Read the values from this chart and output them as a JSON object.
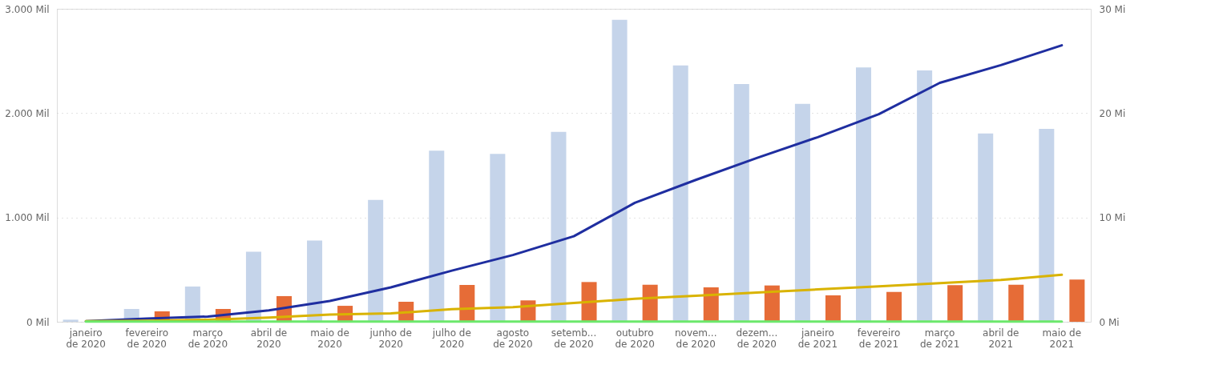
{
  "chart_data": {
    "type": "bar",
    "categories": [
      "janeiro\nde 2020",
      "fevereiro\nde 2020",
      "março\nde 2020",
      "abril de\n2020",
      "maio de\n2020",
      "junho de\n2020",
      "julho de\n2020",
      "agosto\nde 2020",
      "setemb...\nde 2020",
      "outubro\nde 2020",
      "novem...\nde 2020",
      "dezem...\nde 2020",
      "janeiro\nde 2021",
      "fevereiro\nde 2021",
      "março\nde 2021",
      "abril de\n2021",
      "maio de\n2021"
    ],
    "series": [
      {
        "color": "#c5d4ea",
        "values": [
          20,
          123,
          338,
          671,
          779,
          1169,
          1640,
          1609,
          1821,
          2895,
          2458,
          2279,
          2089,
          2438,
          2409,
          1805,
          1849
        ]
      },
      {
        "color": "#e66c37",
        "values": [
          null,
          100,
          123,
          246,
          153,
          192,
          353,
          205,
          381,
          355,
          330,
          348,
          253,
          286,
          351,
          355,
          404
        ]
      },
      {
        "type": "line",
        "axis": "y2",
        "color": "#1f2ea0",
        "values": [
          0.05,
          0.3,
          0.5,
          1.1,
          2.0,
          3.3,
          4.9,
          6.4,
          8.2,
          11.4,
          13.6,
          15.7,
          17.7,
          19.9,
          22.9,
          24.6,
          26.5
        ]
      },
      {
        "type": "line",
        "axis": "y2",
        "color": "#d9b300",
        "values": [
          0.05,
          0.1,
          0.2,
          0.4,
          0.7,
          0.8,
          1.2,
          1.4,
          1.8,
          2.2,
          2.5,
          2.8,
          3.1,
          3.4,
          3.7,
          4.0,
          4.5
        ]
      },
      {
        "type": "line",
        "axis": "y2",
        "color": "#6ce86c",
        "values": [
          0.02,
          0.02,
          0.02,
          0.02,
          0.02,
          0.02,
          0.02,
          0.02,
          0.02,
          0.02,
          0.02,
          0.02,
          0.02,
          0.02,
          0.02,
          0.02,
          0.02
        ]
      }
    ],
    "ylim": [
      0,
      3000
    ],
    "yticks": [
      {
        "value": 0,
        "label": "0 Mil"
      },
      {
        "value": 1000,
        "label": "1.000 Mil"
      },
      {
        "value": 2000,
        "label": "2.000 Mil"
      },
      {
        "value": 3000,
        "label": "3.000 Mil"
      }
    ],
    "y2lim": [
      0,
      30
    ],
    "y2ticks": [
      {
        "value": 0,
        "label": "0 Mi"
      },
      {
        "value": 10,
        "label": "10 Mi"
      },
      {
        "value": 20,
        "label": "20 Mi"
      },
      {
        "value": 30,
        "label": "30 Mi"
      }
    ],
    "grid": "y",
    "marker": "none",
    "line_style": "solid"
  }
}
